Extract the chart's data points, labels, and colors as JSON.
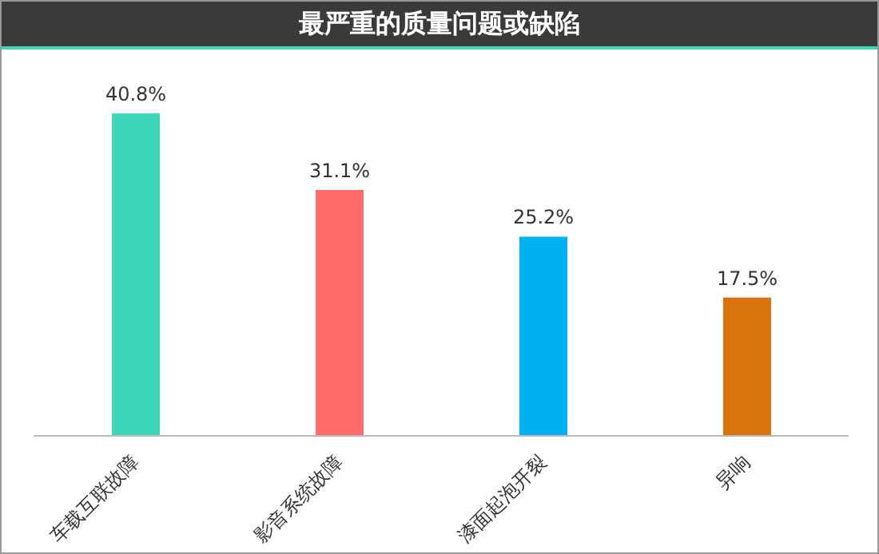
{
  "chart_data": {
    "type": "bar",
    "title": "最严重的质量问题或缺陷",
    "categories": [
      "车载互联故障",
      "影音系统故障",
      "漆面起泡开裂",
      "异响"
    ],
    "values": [
      40.8,
      31.1,
      25.2,
      17.5
    ],
    "colors": [
      "#3dd6b8",
      "#ff6b6b",
      "#00b0f0",
      "#d9730d"
    ],
    "value_labels": [
      "40.8%",
      "31.1%",
      "25.2%",
      "17.5%"
    ]
  }
}
